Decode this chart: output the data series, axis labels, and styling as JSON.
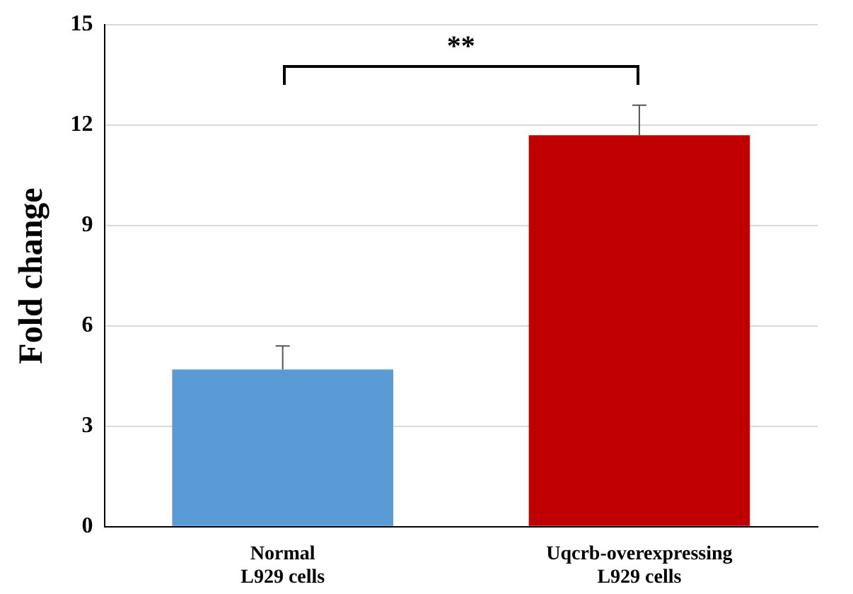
{
  "chart_data": {
    "type": "bar",
    "ylabel": "Fold change",
    "categories": [
      "Normal\nL929 cells",
      "Uqcrb-overexpressing\nL929 cells"
    ],
    "values": [
      4.7,
      11.7
    ],
    "colors": [
      "#5b9bd5",
      "#c00000"
    ],
    "errors": [
      [
        4.7,
        5.4
      ],
      [
        11.7,
        12.6
      ]
    ],
    "ylim": [
      0,
      15
    ],
    "yticks": [
      0,
      3,
      6,
      9,
      12,
      15
    ],
    "grid": "y",
    "legend": false,
    "annotations": [
      "**"
    ]
  }
}
